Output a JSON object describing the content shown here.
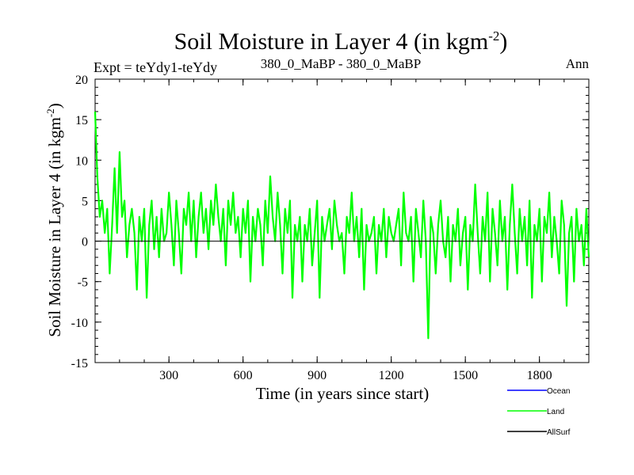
{
  "header": {
    "title": "Soil Moisture in Layer 4 (in kgm",
    "title_sup": "-2",
    "title_close": ")",
    "expt_label": "Expt = teYdy1-teYdy",
    "subtitle": "380_0_MaBP - 380_0_MaBP",
    "period": "Ann"
  },
  "colors": {
    "ocean": "#0000ff",
    "land": "#00ff00",
    "allsurf": "#000000"
  },
  "chart_data": {
    "type": "line",
    "title": "Soil Moisture in Layer 4 (in kgm-2)",
    "xlabel": "Time (in years since start)",
    "ylabel": "Soil Moisture in Layer 4 (in kgm-2)",
    "ylabel_main": "Soil Moisture in Layer 4 (in kgm",
    "ylabel_sup": "-2",
    "ylabel_close": ")",
    "xlim": [
      1,
      2000
    ],
    "ylim": [
      -15,
      20
    ],
    "x_ticks": [
      300,
      600,
      900,
      1200,
      1500,
      1800
    ],
    "x_tick_labels": [
      "300",
      "600",
      "900",
      "1200",
      "1500",
      "1800"
    ],
    "y_ticks": [
      20,
      15,
      10,
      5,
      0,
      -5,
      -10,
      -15
    ],
    "y_tick_labels": [
      "20",
      "15",
      "10",
      "5",
      "0",
      "-5",
      "-10",
      "-15"
    ],
    "zero_line": 0,
    "series": [
      {
        "name": "Ocean",
        "color": "#0000ff",
        "values": []
      },
      {
        "name": "Land",
        "color": "#00ff00",
        "x": [
          1,
          10,
          20,
          30,
          40,
          50,
          60,
          70,
          80,
          90,
          100,
          110,
          120,
          130,
          140,
          150,
          160,
          170,
          180,
          190,
          200,
          210,
          220,
          230,
          240,
          250,
          260,
          270,
          280,
          290,
          300,
          310,
          320,
          330,
          340,
          350,
          360,
          370,
          380,
          390,
          400,
          410,
          420,
          430,
          440,
          450,
          460,
          470,
          480,
          490,
          500,
          510,
          520,
          530,
          540,
          550,
          560,
          570,
          580,
          590,
          600,
          610,
          620,
          630,
          640,
          650,
          660,
          670,
          680,
          690,
          700,
          710,
          720,
          730,
          740,
          750,
          760,
          770,
          780,
          790,
          800,
          810,
          820,
          830,
          840,
          850,
          860,
          870,
          880,
          890,
          900,
          910,
          920,
          930,
          940,
          950,
          960,
          970,
          980,
          990,
          1000,
          1010,
          1020,
          1030,
          1040,
          1050,
          1060,
          1070,
          1080,
          1090,
          1100,
          1110,
          1120,
          1130,
          1140,
          1150,
          1160,
          1170,
          1180,
          1190,
          1200,
          1210,
          1220,
          1230,
          1240,
          1250,
          1260,
          1270,
          1280,
          1290,
          1300,
          1310,
          1320,
          1330,
          1340,
          1350,
          1360,
          1370,
          1380,
          1390,
          1400,
          1410,
          1420,
          1430,
          1440,
          1450,
          1460,
          1470,
          1480,
          1490,
          1500,
          1510,
          1520,
          1530,
          1540,
          1550,
          1560,
          1570,
          1580,
          1590,
          1600,
          1610,
          1620,
          1630,
          1640,
          1650,
          1660,
          1670,
          1680,
          1690,
          1700,
          1710,
          1720,
          1730,
          1740,
          1750,
          1760,
          1770,
          1780,
          1790,
          1800,
          1810,
          1820,
          1830,
          1840,
          1850,
          1860,
          1870,
          1880,
          1890,
          1900,
          1910,
          1920,
          1930,
          1940,
          1950,
          1960,
          1970,
          1980,
          1990,
          2000
        ],
        "values": [
          16,
          8,
          3,
          5,
          1,
          4,
          -4,
          2,
          9,
          1,
          11,
          3,
          5,
          -2,
          2,
          4,
          1,
          -6,
          3,
          0,
          4,
          -7,
          2,
          5,
          -1,
          3,
          -2,
          4,
          0,
          1,
          6,
          2,
          -3,
          5,
          1,
          -4,
          4,
          2,
          6,
          0,
          5,
          -2,
          3,
          6,
          1,
          4,
          -1,
          5,
          2,
          7,
          3,
          0,
          4,
          -3,
          5,
          2,
          6,
          1,
          3,
          -2,
          4,
          1,
          5,
          -5,
          3,
          0,
          4,
          2,
          -3,
          5,
          1,
          8,
          3,
          0,
          6,
          2,
          -4,
          4,
          1,
          5,
          -7,
          2,
          0,
          3,
          -5,
          2,
          0,
          4,
          -3,
          1,
          5,
          -7,
          3,
          0,
          2,
          4,
          -1,
          5,
          2,
          0,
          1,
          -4,
          3,
          1,
          6,
          0,
          3,
          -2,
          4,
          -6,
          2,
          0,
          1,
          3,
          -4,
          2,
          0,
          4,
          -2,
          3,
          1,
          0,
          2,
          4,
          -3,
          6,
          1,
          0,
          3,
          -5,
          4,
          1,
          -2,
          5,
          0,
          -12,
          3,
          1,
          -4,
          2,
          5,
          0,
          -2,
          3,
          -5,
          2,
          0,
          4,
          -3,
          1,
          3,
          -6,
          2,
          0,
          7,
          1,
          -4,
          3,
          0,
          6,
          -5,
          4,
          1,
          -3,
          5,
          0,
          3,
          -6,
          2,
          7,
          1,
          -4,
          4,
          0,
          3,
          -3,
          5,
          -7,
          2,
          0,
          4,
          -5,
          3,
          1,
          6,
          -2,
          3,
          0,
          -4,
          5,
          2,
          -8,
          1,
          3,
          -5,
          4,
          0,
          2,
          -3,
          4,
          -2
        ]
      },
      {
        "name": "AllSurf",
        "color": "#000000",
        "values": []
      }
    ],
    "legend": {
      "position": "bottom-right",
      "entries": [
        "Ocean",
        "Land",
        "AllSurf"
      ]
    }
  }
}
